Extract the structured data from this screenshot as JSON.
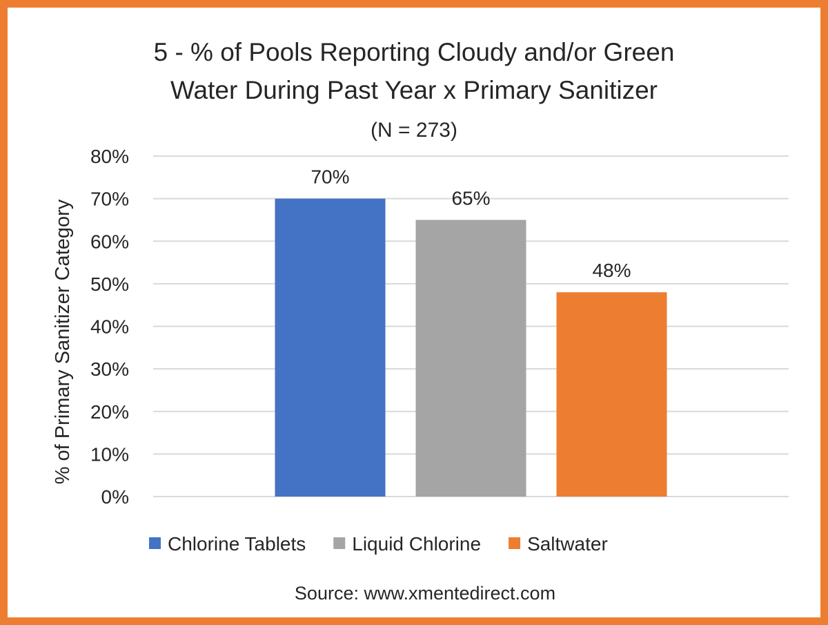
{
  "chart_data": {
    "type": "bar",
    "title_lines": [
      "5 - % of Pools Reporting Cloudy and/or Green",
      "Water During Past Year x Primary Sanitizer"
    ],
    "subtitle": "(N = 273)",
    "xlabel": "",
    "ylabel": "% of Primary Sanitizer Category",
    "ylim": [
      0,
      80
    ],
    "yticks": [
      "0%",
      "10%",
      "20%",
      "30%",
      "40%",
      "50%",
      "60%",
      "70%",
      "80%"
    ],
    "grid": true,
    "legend_position": "bottom",
    "series": [
      {
        "name": "Chlorine Tablets",
        "values": [
          70
        ],
        "label": "70%",
        "color": "#4472C4"
      },
      {
        "name": "Liquid Chlorine",
        "values": [
          65
        ],
        "label": "65%",
        "color": "#A5A5A5"
      },
      {
        "name": "Saltwater",
        "values": [
          48
        ],
        "label": "48%",
        "color": "#ED7D31"
      }
    ],
    "source": "Source: www.xmentedirect.com"
  },
  "border_color": "#ED7D31"
}
